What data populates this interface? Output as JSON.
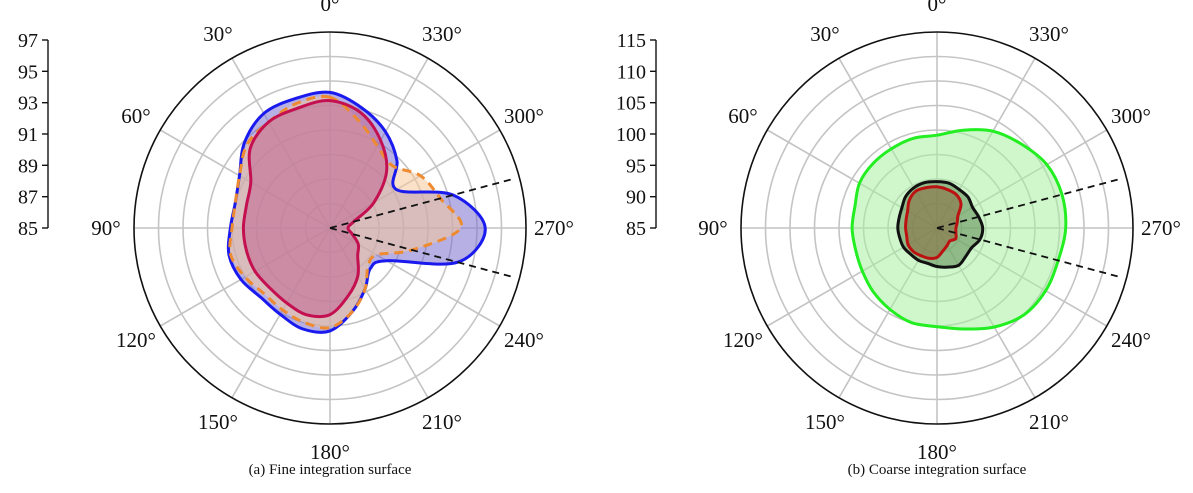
{
  "chart_data": [
    {
      "type": "polar-area",
      "caption": "(a) Fine integration surface",
      "radial_ticks": [
        85,
        87,
        89,
        91,
        93,
        95,
        97
      ],
      "rlim": [
        85,
        97
      ],
      "angle_ticks": [
        0,
        30,
        60,
        90,
        120,
        150,
        180,
        210,
        240,
        270,
        300,
        330
      ],
      "angle_tick_labels": [
        "0°",
        "30°",
        "60°",
        "90°",
        "120°",
        "150°",
        "180°",
        "210°",
        "240°",
        "270°",
        "300°",
        "330°"
      ],
      "angle_direction": "counterclockwise from top",
      "grid": true,
      "reference_lines_deg": [
        255,
        285
      ],
      "series": [
        {
          "color": "#1a1aee",
          "fill": "#7a6fd0",
          "dash": "solid",
          "points": [
            [
              0,
              93.3
            ],
            [
              15,
              93.2
            ],
            [
              30,
              93.1
            ],
            [
              45,
              92.4
            ],
            [
              60,
              91.4
            ],
            [
              75,
              91.0
            ],
            [
              90,
              91.1
            ],
            [
              105,
              91.4
            ],
            [
              120,
              91.3
            ],
            [
              135,
              91.0
            ],
            [
              150,
              91.1
            ],
            [
              165,
              91.4
            ],
            [
              180,
              91.3
            ],
            [
              195,
              90.3
            ],
            [
              210,
              89.3
            ],
            [
              225,
              88.5
            ],
            [
              240,
              89.0
            ],
            [
              255,
              93.1
            ],
            [
              270,
              94.5
            ],
            [
              285,
              92.8
            ],
            [
              300,
              89.7
            ],
            [
              315,
              90.8
            ],
            [
              330,
              91.8
            ],
            [
              345,
              92.6
            ]
          ]
        },
        {
          "color": "#ee8a30",
          "fill": "#f6c89a",
          "dash": "dashed",
          "points": [
            [
              0,
              93.0
            ],
            [
              15,
              92.9
            ],
            [
              30,
              92.5
            ],
            [
              45,
              92.2
            ],
            [
              60,
              91.4
            ],
            [
              75,
              91.0
            ],
            [
              90,
              91.0
            ],
            [
              105,
              91.3
            ],
            [
              120,
              91.0
            ],
            [
              135,
              90.7
            ],
            [
              150,
              90.8
            ],
            [
              165,
              91.0
            ],
            [
              180,
              91.1
            ],
            [
              195,
              90.3
            ],
            [
              210,
              89.3
            ],
            [
              225,
              88.3
            ],
            [
              240,
              88.3
            ],
            [
              255,
              90.2
            ],
            [
              270,
              93.0
            ],
            [
              285,
              92.0
            ],
            [
              300,
              91.4
            ],
            [
              315,
              90.4
            ],
            [
              330,
              90.8
            ],
            [
              345,
              91.8
            ]
          ]
        },
        {
          "color": "#c41050",
          "fill": "#c06490",
          "dash": "solid",
          "points": [
            [
              0,
              92.8
            ],
            [
              15,
              92.6
            ],
            [
              30,
              92.5
            ],
            [
              45,
              91.9
            ],
            [
              60,
              90.6
            ],
            [
              75,
              90.3
            ],
            [
              90,
              90.3
            ],
            [
              105,
              90.3
            ],
            [
              120,
              90.3
            ],
            [
              135,
              90.2
            ],
            [
              150,
              90.3
            ],
            [
              165,
              90.5
            ],
            [
              180,
              90.3
            ],
            [
              195,
              89.3
            ],
            [
              210,
              88.4
            ],
            [
              225,
              87.4
            ],
            [
              240,
              87.0
            ],
            [
              255,
              86.4
            ],
            [
              270,
              86.1
            ],
            [
              285,
              86.5
            ],
            [
              300,
              88.1
            ],
            [
              315,
              89.9
            ],
            [
              330,
              91.2
            ],
            [
              345,
              92.3
            ]
          ]
        }
      ]
    },
    {
      "type": "polar-area",
      "caption": "(b) Coarse integration surface",
      "radial_ticks": [
        85,
        90,
        95,
        100,
        105,
        110,
        115
      ],
      "rlim": [
        85,
        115
      ],
      "angle_ticks": [
        0,
        30,
        60,
        90,
        120,
        150,
        180,
        210,
        240,
        270,
        300,
        330
      ],
      "angle_tick_labels": [
        "0°",
        "30°",
        "60°",
        "90°",
        "120°",
        "150°",
        "180°",
        "210°",
        "240°",
        "270°",
        "300°",
        "330°"
      ],
      "angle_direction": "counterclockwise from top",
      "grid": true,
      "reference_lines_deg": [
        255,
        285
      ],
      "series": [
        {
          "color": "#22ee22",
          "fill": "#a8f0a0",
          "dash": "solid",
          "points": [
            [
              0,
              99.2
            ],
            [
              15,
              99.2
            ],
            [
              30,
              99.0
            ],
            [
              45,
              98.9
            ],
            [
              60,
              98.7
            ],
            [
              75,
              98.0
            ],
            [
              90,
              98.0
            ],
            [
              105,
              97.9
            ],
            [
              120,
              98.2
            ],
            [
              135,
              98.8
            ],
            [
              150,
              99.4
            ],
            [
              165,
              100.0
            ],
            [
              180,
              100.1
            ],
            [
              195,
              101.0
            ],
            [
              210,
              102.5
            ],
            [
              225,
              103.8
            ],
            [
              240,
              104.2
            ],
            [
              255,
              104.2
            ],
            [
              270,
              104.7
            ],
            [
              285,
              104.8
            ],
            [
              300,
              104.4
            ],
            [
              315,
              103.2
            ],
            [
              330,
              102.1
            ],
            [
              345,
              100.5
            ]
          ]
        },
        {
          "color": "#111111",
          "fill": "#5c8a52",
          "dash": "solid",
          "points": [
            [
              0,
              92.1
            ],
            [
              15,
              92.2
            ],
            [
              30,
              92.1
            ],
            [
              45,
              91.8
            ],
            [
              60,
              91.2
            ],
            [
              75,
              91.0
            ],
            [
              90,
              91.0
            ],
            [
              105,
              90.9
            ],
            [
              120,
              90.9
            ],
            [
              135,
              90.7
            ],
            [
              150,
              90.7
            ],
            [
              165,
              90.6
            ],
            [
              180,
              90.9
            ],
            [
              195,
              91.2
            ],
            [
              210,
              91.6
            ],
            [
              225,
              91.2
            ],
            [
              240,
              91.1
            ],
            [
              255,
              91.8
            ],
            [
              270,
              92.0
            ],
            [
              285,
              91.6
            ],
            [
              300,
              91.3
            ],
            [
              315,
              91.7
            ],
            [
              330,
              91.8
            ],
            [
              345,
              92.1
            ]
          ]
        },
        {
          "color": "#bb1111",
          "fill": "#8a6a40",
          "dash": "solid",
          "points": [
            [
              0,
              91.3
            ],
            [
              15,
              91.4
            ],
            [
              30,
              91.5
            ],
            [
              45,
              91.0
            ],
            [
              60,
              90.2
            ],
            [
              75,
              89.9
            ],
            [
              90,
              89.8
            ],
            [
              105,
              89.8
            ],
            [
              120,
              90.1
            ],
            [
              135,
              90.1
            ],
            [
              150,
              89.9
            ],
            [
              165,
              89.8
            ],
            [
              180,
              89.5
            ],
            [
              195,
              88.6
            ],
            [
              210,
              88.1
            ],
            [
              225,
              87.8
            ],
            [
              240,
              88.3
            ],
            [
              255,
              88.0
            ],
            [
              270,
              87.9
            ],
            [
              285,
              88.2
            ],
            [
              300,
              88.7
            ],
            [
              315,
              90.2
            ],
            [
              330,
              90.9
            ],
            [
              345,
              91.1
            ]
          ]
        }
      ]
    }
  ]
}
